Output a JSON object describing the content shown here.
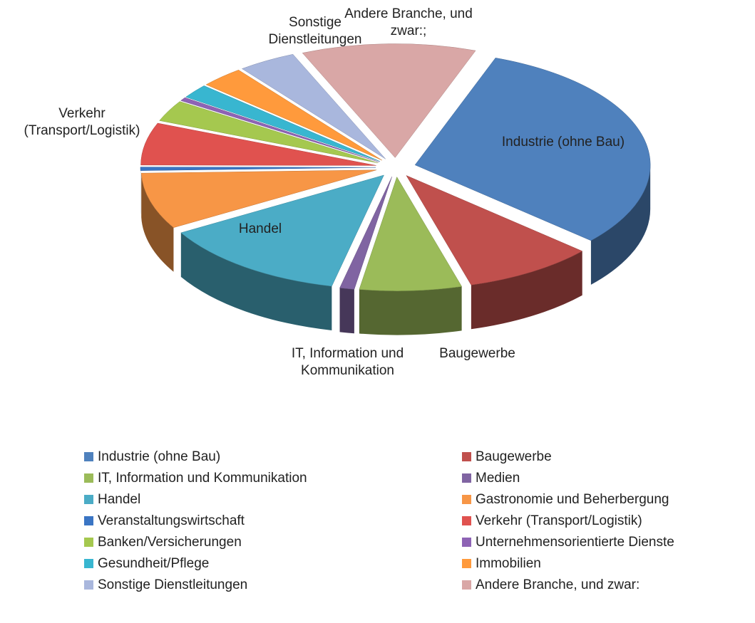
{
  "chart_data": {
    "type": "pie",
    "categories": [
      "Industrie (ohne Bau)",
      "Baugewerbe",
      "IT, Information und Kommunikation",
      "Medien",
      "Handel",
      "Gastronomie und Beherbergung",
      "Veranstaltungswirtschaft",
      "Verkehr (Transport/Logistik)",
      "Banken/Versicherungen",
      "Unternehmensorientierte Dienste",
      "Gesundheit/Pflege",
      "Immobilien",
      "Sonstige Dienstleitungen",
      "Andere Branche, und zwar:"
    ],
    "values": [
      31,
      9,
      7,
      1,
      13,
      8,
      0.5,
      6,
      3,
      0.5,
      2,
      3,
      4,
      12
    ],
    "colors": [
      "#4f81bd",
      "#c0504d",
      "#9bbb59",
      "#8064a2",
      "#4bacc6",
      "#f79646",
      "#3a75c4",
      "#e0524f",
      "#a5c84f",
      "#8e63b5",
      "#38b6d0",
      "#ff9a3c",
      "#a9b7dd",
      "#d9a7a6"
    ],
    "slice_labels": [
      "Industrie (ohne Bau)",
      "Baugewerbe",
      "IT, Information und Kommunikation",
      null,
      "Handel",
      null,
      null,
      "Verkehr (Transport/Logistik)",
      null,
      null,
      null,
      null,
      "Sonstige Dienstleitungen",
      "Andere Branche, und zwar:;"
    ]
  }
}
